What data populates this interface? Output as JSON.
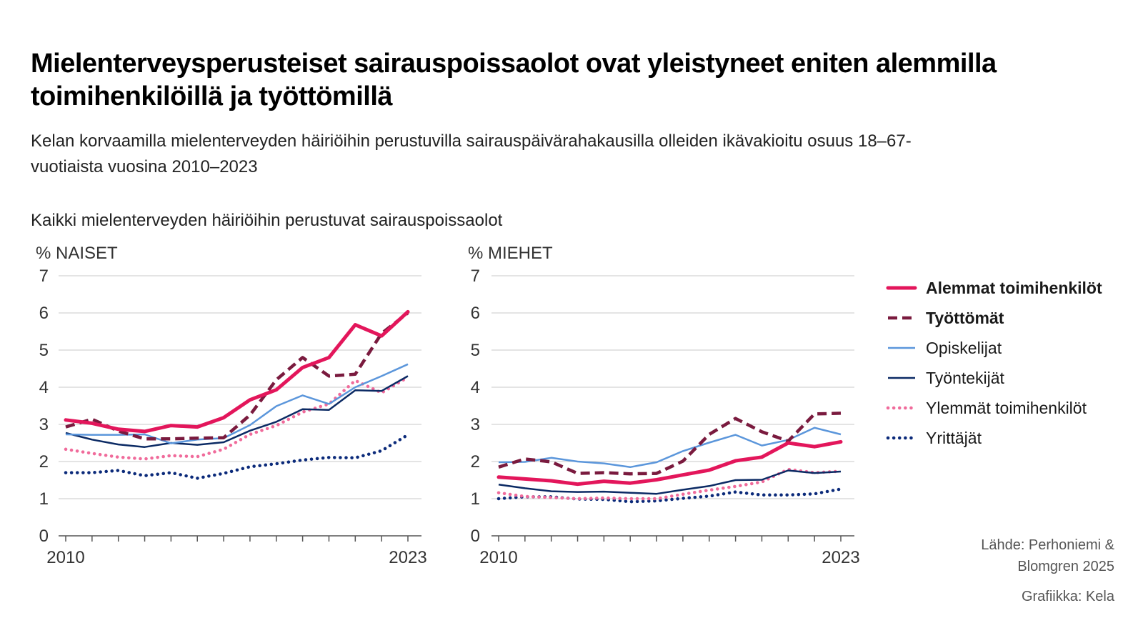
{
  "title": "Mielenterveysperusteiset sairauspoissaolot ovat yleistyneet eniten alemmilla toimihenkilöillä ja työttömillä",
  "subtitle": "Kelan korvaamilla mielenterveyden häiriöihin perustuvilla sairauspäivärahakausilla olleiden ikävakioitu osuus 18–67-vuotiaista vuosina 2010–2023",
  "section_title": "Kaikki mielenterveyden häiriöihin perustuvat sairauspoissaolot",
  "source_lines": [
    "Lähde: Perhoniemi &",
    "Blomgren 2025"
  ],
  "credit": "Grafiikka: Kela",
  "legend": [
    {
      "name": "Alemmat toimihenkilöt",
      "color": "#e3165b",
      "style": "solid-thick",
      "bold": true
    },
    {
      "name": "Työttömät",
      "color": "#7a1a3e",
      "style": "dashed-thick",
      "bold": true
    },
    {
      "name": "Opiskelijat",
      "color": "#5b96db",
      "style": "solid",
      "bold": false
    },
    {
      "name": "Työntekijät",
      "color": "#0b2a64",
      "style": "solid",
      "bold": false
    },
    {
      "name": "Ylemmät toimihenkilöt",
      "color": "#f06b9b",
      "style": "dotted",
      "bold": false
    },
    {
      "name": "Yrittäjät",
      "color": "#0b2a7a",
      "style": "dotted",
      "bold": false
    }
  ],
  "chart_data": [
    {
      "type": "line",
      "title": "NAISET",
      "ylabel": "%",
      "ylim": [
        0,
        7
      ],
      "yticks": [
        0,
        1,
        2,
        3,
        4,
        5,
        6,
        7
      ],
      "x": [
        2010,
        2011,
        2012,
        2013,
        2014,
        2015,
        2016,
        2017,
        2018,
        2019,
        2020,
        2021,
        2022,
        2023
      ],
      "x_tick_labels": [
        "2010",
        "2023"
      ],
      "grid": true,
      "series": [
        {
          "name": "Alemmat toimihenkilöt",
          "values": [
            3.12,
            3.03,
            2.87,
            2.81,
            2.97,
            2.93,
            3.18,
            3.66,
            3.93,
            4.53,
            4.8,
            5.68,
            5.38,
            6.03
          ]
        },
        {
          "name": "Työttömät",
          "values": [
            2.93,
            3.14,
            2.82,
            2.61,
            2.61,
            2.63,
            2.64,
            3.25,
            4.2,
            4.8,
            4.3,
            4.35,
            5.45,
            6.0
          ]
        },
        {
          "name": "Opiskelijat",
          "values": [
            2.73,
            2.72,
            2.72,
            2.73,
            2.49,
            2.59,
            2.63,
            2.98,
            3.49,
            3.78,
            3.55,
            4.0,
            4.3,
            4.62
          ]
        },
        {
          "name": "Työntekijät",
          "values": [
            2.77,
            2.59,
            2.46,
            2.39,
            2.5,
            2.45,
            2.52,
            2.83,
            3.07,
            3.41,
            3.39,
            3.92,
            3.9,
            4.3
          ]
        },
        {
          "name": "Ylemmät toimihenkilöt",
          "values": [
            2.33,
            2.22,
            2.12,
            2.07,
            2.16,
            2.13,
            2.33,
            2.73,
            2.97,
            3.33,
            3.55,
            4.18,
            3.85,
            4.27
          ]
        },
        {
          "name": "Yrittäjät",
          "values": [
            1.7,
            1.7,
            1.76,
            1.62,
            1.7,
            1.55,
            1.68,
            1.86,
            1.94,
            2.04,
            2.11,
            2.1,
            2.29,
            2.72
          ]
        }
      ]
    },
    {
      "type": "line",
      "title": "MIEHET",
      "ylabel": "%",
      "ylim": [
        0,
        7
      ],
      "yticks": [
        0,
        1,
        2,
        3,
        4,
        5,
        6,
        7
      ],
      "x": [
        2010,
        2011,
        2012,
        2013,
        2014,
        2015,
        2016,
        2017,
        2018,
        2019,
        2020,
        2021,
        2022,
        2023
      ],
      "x_tick_labels": [
        "2010",
        "2023"
      ],
      "grid": true,
      "series": [
        {
          "name": "Alemmat toimihenkilöt",
          "values": [
            1.58,
            1.53,
            1.48,
            1.39,
            1.47,
            1.42,
            1.51,
            1.64,
            1.77,
            2.02,
            2.12,
            2.5,
            2.4,
            2.53
          ]
        },
        {
          "name": "Työttömät",
          "values": [
            1.85,
            2.07,
            1.99,
            1.68,
            1.7,
            1.67,
            1.68,
            2.01,
            2.73,
            3.16,
            2.8,
            2.55,
            3.28,
            3.3
          ]
        },
        {
          "name": "Opiskelijat",
          "values": [
            1.98,
            1.99,
            2.1,
            2.0,
            1.95,
            1.85,
            1.98,
            2.28,
            2.51,
            2.72,
            2.43,
            2.58,
            2.91,
            2.73
          ]
        },
        {
          "name": "Työntekijät",
          "values": [
            1.38,
            1.28,
            1.2,
            1.18,
            1.19,
            1.16,
            1.13,
            1.24,
            1.34,
            1.5,
            1.51,
            1.76,
            1.69,
            1.73
          ]
        },
        {
          "name": "Ylemmät toimihenkilöt",
          "values": [
            1.16,
            1.06,
            1.03,
            1.0,
            1.02,
            1.0,
            1.0,
            1.12,
            1.23,
            1.33,
            1.45,
            1.79,
            1.7,
            1.74
          ]
        },
        {
          "name": "Yrittäjät",
          "values": [
            1.0,
            1.05,
            1.05,
            0.99,
            0.98,
            0.92,
            0.94,
            1.01,
            1.07,
            1.18,
            1.1,
            1.1,
            1.13,
            1.26
          ]
        }
      ]
    }
  ]
}
